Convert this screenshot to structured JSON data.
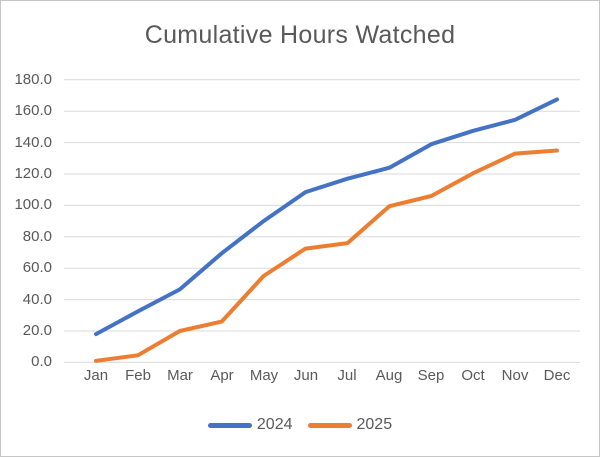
{
  "chart_data": {
    "type": "line",
    "title": "Cumulative Hours Watched",
    "categories": [
      "Jan",
      "Feb",
      "Mar",
      "Apr",
      "May",
      "Jun",
      "Jul",
      "Aug",
      "Sep",
      "Oct",
      "Nov",
      "Dec"
    ],
    "series": [
      {
        "name": "2024",
        "color": "#4472C4",
        "values": [
          18.0,
          32.5,
          46.5,
          69.5,
          90.0,
          108.5,
          117.0,
          124.0,
          139.0,
          147.5,
          154.5,
          167.5
        ]
      },
      {
        "name": "2025",
        "color": "#ED7D31",
        "values": [
          1.0,
          4.5,
          20.0,
          26.0,
          55.0,
          72.5,
          76.0,
          99.5,
          106.0,
          120.5,
          133.0,
          135.0
        ]
      }
    ],
    "xlabel": "",
    "ylabel": "",
    "ylim": [
      0,
      180
    ],
    "ytick_step": 20,
    "ytick_labels": [
      "0.0",
      "20.0",
      "40.0",
      "60.0",
      "80.0",
      "100.0",
      "120.0",
      "140.0",
      "160.0",
      "180.0"
    ],
    "grid": "horizontal",
    "legend_position": "bottom",
    "colors": {
      "gridline": "#D9D9D9",
      "axis_text": "#595959",
      "title_text": "#595959",
      "frame_border": "#c6c6c6",
      "background": "#ffffff"
    }
  }
}
